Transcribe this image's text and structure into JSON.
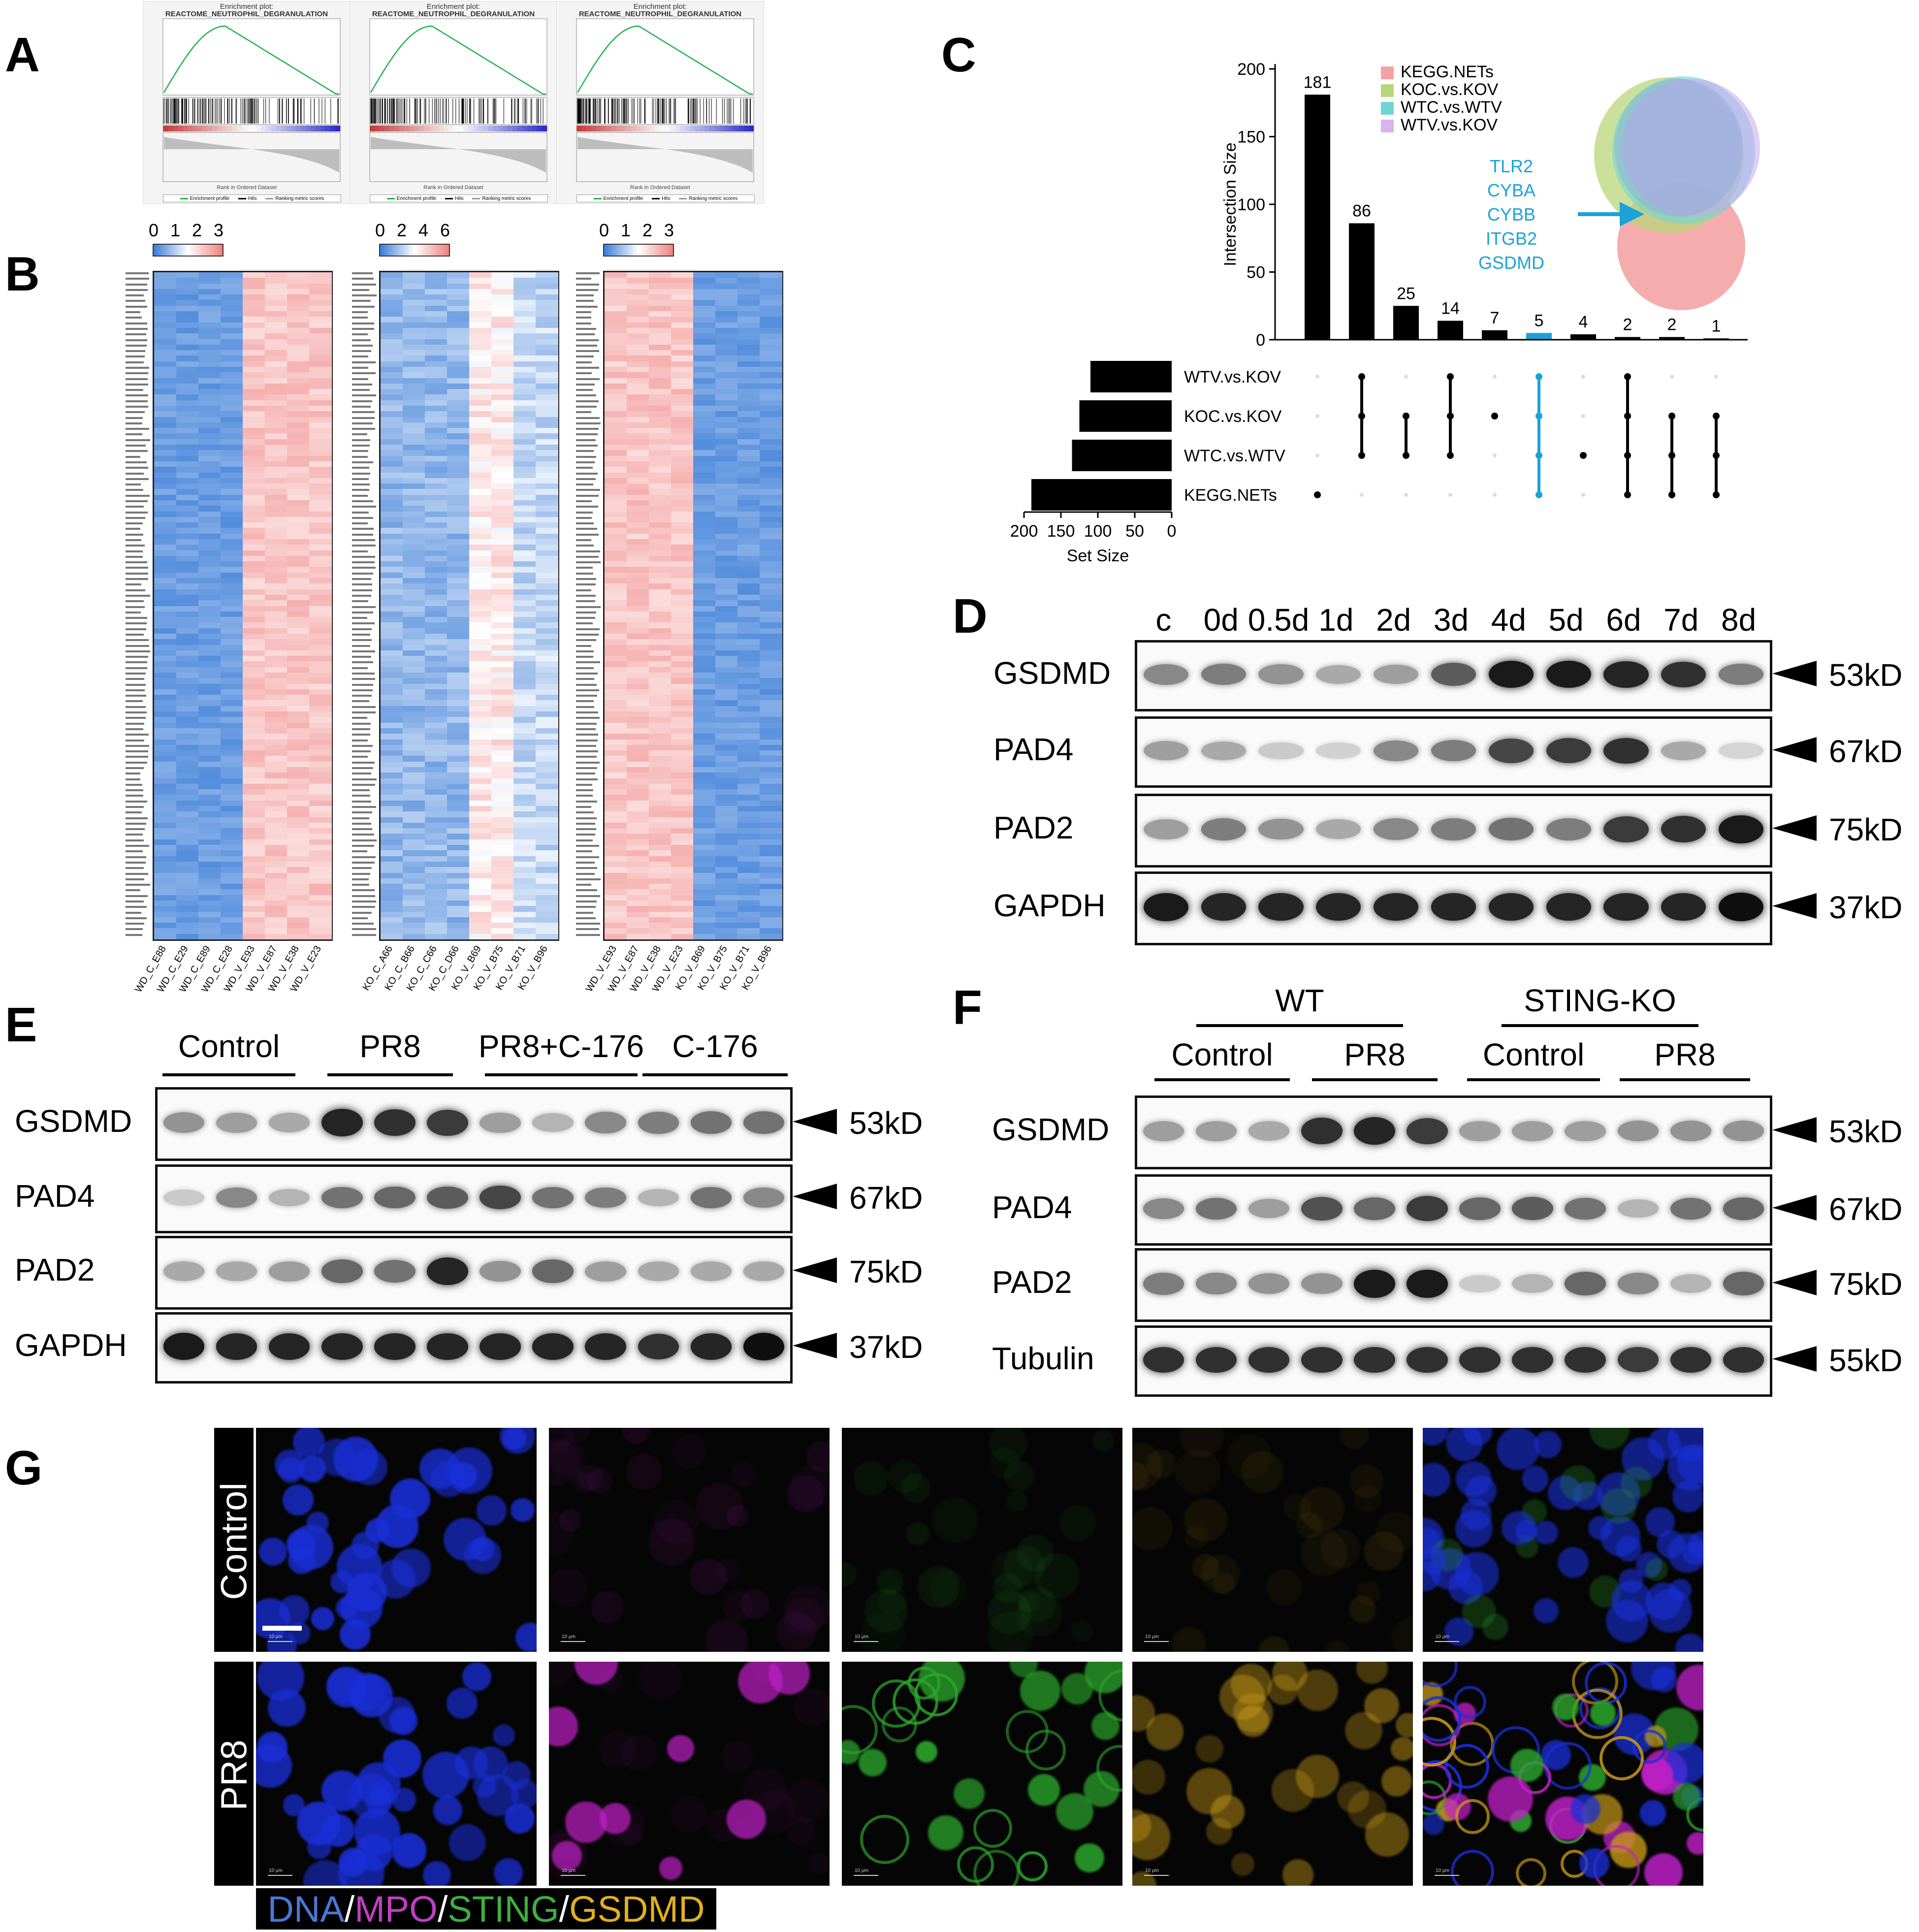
{
  "panels": {
    "A": "A",
    "B": "B",
    "C": "C",
    "D": "D",
    "E": "E",
    "F": "F",
    "G": "G"
  },
  "panel_a": {
    "plot_header": "Enrichment plot:",
    "gene_set": "REACTOME_NEUTROPHIL_DEGRANULATION",
    "x_axis_title": "Rank in Ordered Dataset",
    "legend": [
      "Enrichment profile",
      "Hits",
      "Ranking metric scores"
    ]
  },
  "panel_b": {
    "heatmaps": [
      {
        "scale_ticks": [
          "0",
          "1",
          "2",
          "3"
        ],
        "samples": [
          "WD_C_E88",
          "WD_C_E29",
          "WD_C_E89",
          "WD_C_E28",
          "WD_V_E93",
          "WD_V_E87",
          "WD_V_E38",
          "WD_V_E23"
        ]
      },
      {
        "scale_ticks": [
          "0",
          "2",
          "4",
          "6"
        ],
        "samples": [
          "KO_C_A66",
          "KO_C_B66",
          "KO_C_C66",
          "KO_C_D66",
          "KO_V_B69",
          "KO_V_B75",
          "KO_V_B71",
          "KO_V_B96"
        ]
      },
      {
        "scale_ticks": [
          "0",
          "1",
          "2",
          "3"
        ],
        "samples": [
          "WD_V_E93",
          "WD_V_E87",
          "WD_V_E38",
          "WD_V_E23",
          "KO_V_B69",
          "KO_V_B75",
          "KO_V_B71",
          "KO_V_B96"
        ]
      }
    ],
    "colors": {
      "low": "#3b7dd8",
      "mid": "#ffffff",
      "high": "#f08080"
    }
  },
  "chart_data": {
    "type": "bar",
    "subtype": "upset",
    "ylabel": "Intersection Size",
    "ylim": [
      0,
      200
    ],
    "y_ticks": [
      "0",
      "50",
      "100",
      "150",
      "200"
    ],
    "values": [
      181,
      86,
      25,
      14,
      7,
      5,
      4,
      2,
      2,
      1
    ],
    "highlight_index": 5,
    "sets": [
      "WTV.vs.KOV",
      "KOC.vs.KOV",
      "WTC.vs.WTV",
      "KEGG.NETs"
    ],
    "set_sizes_xlabel": "Set Size",
    "set_size_ticks": [
      "200",
      "150",
      "100",
      "50",
      "0"
    ],
    "set_sizes": [
      110,
      125,
      135,
      190
    ],
    "membership": [
      [
        "KEGG.NETs"
      ],
      [
        "WTV.vs.KOV",
        "KOC.vs.KOV",
        "WTC.vs.WTV"
      ],
      [
        "KOC.vs.KOV",
        "WTC.vs.WTV"
      ],
      [
        "WTV.vs.KOV",
        "KOC.vs.KOV",
        "WTC.vs.WTV"
      ],
      [
        "KOC.vs.KOV"
      ],
      [
        "WTV.vs.KOV",
        "KOC.vs.KOV",
        "WTC.vs.WTV",
        "KEGG.NETs"
      ],
      [
        "WTC.vs.WTV"
      ],
      [
        "WTV.vs.KOV",
        "KOC.vs.KOV",
        "WTC.vs.WTV",
        "KEGG.NETs"
      ],
      [
        "KOC.vs.KOV",
        "WTC.vs.WTV",
        "KEGG.NETs"
      ],
      [
        "KOC.vs.KOV",
        "WTC.vs.WTV",
        "KEGG.NETs"
      ]
    ],
    "legend": [
      {
        "name": "KEGG.NETs",
        "color": "#f4a3a3"
      },
      {
        "name": "KOC.vs.KOV",
        "color": "#b9d77a"
      },
      {
        "name": "WTC.vs.WTV",
        "color": "#6fd6d6"
      },
      {
        "name": "WTV.vs.KOV",
        "color": "#d9b3f0"
      }
    ],
    "venn_genes": [
      "TLR2",
      "CYBA",
      "CYBB",
      "ITGB2",
      "GSDMD"
    ],
    "accent_color": "#1aa3d8"
  },
  "panel_d": {
    "lanes": [
      "c",
      "0d",
      "0.5d",
      "1d",
      "2d",
      "3d",
      "4d",
      "5d",
      "6d",
      "7d",
      "8d"
    ],
    "rows": [
      {
        "label": "GSDMD",
        "kd": "53kD",
        "intensity": [
          0.45,
          0.5,
          0.4,
          0.3,
          0.35,
          0.65,
          0.95,
          0.95,
          0.9,
          0.85,
          0.5
        ]
      },
      {
        "label": "PAD4",
        "kd": "67kD",
        "intensity": [
          0.35,
          0.3,
          0.15,
          0.12,
          0.45,
          0.5,
          0.75,
          0.8,
          0.85,
          0.3,
          0.1
        ]
      },
      {
        "label": "PAD2",
        "kd": "75kD",
        "intensity": [
          0.35,
          0.5,
          0.4,
          0.3,
          0.45,
          0.5,
          0.55,
          0.5,
          0.8,
          0.85,
          0.95
        ]
      },
      {
        "label": "GAPDH",
        "kd": "37kD",
        "intensity": [
          0.95,
          0.9,
          0.9,
          0.9,
          0.9,
          0.9,
          0.9,
          0.9,
          0.9,
          0.9,
          1.0
        ]
      }
    ]
  },
  "panel_e": {
    "groups": [
      "Control",
      "PR8",
      "PR8+C-176",
      "C-176"
    ],
    "rows": [
      {
        "label": "GSDMD",
        "kd": "53kD",
        "intensity": [
          0.4,
          0.35,
          0.3,
          0.9,
          0.85,
          0.8,
          0.35,
          0.25,
          0.45,
          0.5,
          0.55,
          0.55
        ]
      },
      {
        "label": "PAD4",
        "kd": "67kD",
        "intensity": [
          0.15,
          0.45,
          0.25,
          0.55,
          0.6,
          0.65,
          0.75,
          0.55,
          0.5,
          0.25,
          0.55,
          0.45
        ]
      },
      {
        "label": "PAD2",
        "kd": "75kD",
        "intensity": [
          0.3,
          0.3,
          0.35,
          0.6,
          0.55,
          0.9,
          0.4,
          0.6,
          0.35,
          0.3,
          0.3,
          0.3
        ]
      },
      {
        "label": "GAPDH",
        "kd": "37kD",
        "intensity": [
          0.95,
          0.9,
          0.9,
          0.9,
          0.9,
          0.9,
          0.9,
          0.9,
          0.9,
          0.85,
          0.9,
          1.0
        ]
      }
    ]
  },
  "panel_f": {
    "top_groups": [
      "WT",
      "STING-KO"
    ],
    "sub_groups": [
      "Control",
      "PR8",
      "Control",
      "PR8"
    ],
    "rows": [
      {
        "label": "GSDMD",
        "kd": "53kD",
        "intensity": [
          0.35,
          0.35,
          0.3,
          0.85,
          0.9,
          0.8,
          0.35,
          0.35,
          0.35,
          0.4,
          0.4,
          0.4
        ]
      },
      {
        "label": "PAD4",
        "kd": "67kD",
        "intensity": [
          0.45,
          0.55,
          0.35,
          0.7,
          0.6,
          0.8,
          0.6,
          0.65,
          0.55,
          0.25,
          0.55,
          0.6
        ]
      },
      {
        "label": "PAD2",
        "kd": "75kD",
        "intensity": [
          0.5,
          0.45,
          0.4,
          0.4,
          0.95,
          0.95,
          0.15,
          0.25,
          0.6,
          0.45,
          0.25,
          0.6
        ]
      },
      {
        "label": "Tubulin",
        "kd": "55kD",
        "intensity": [
          0.85,
          0.85,
          0.85,
          0.85,
          0.85,
          0.85,
          0.85,
          0.85,
          0.85,
          0.8,
          0.85,
          0.85
        ]
      }
    ]
  },
  "panel_g": {
    "rows": [
      "Control",
      "PR8"
    ],
    "scalebar": "10 μm",
    "channels": [
      {
        "name": "DNA",
        "color": "#4a78d8"
      },
      {
        "name": "MPO",
        "color": "#c040c0"
      },
      {
        "name": "STING",
        "color": "#3fae3f"
      },
      {
        "name": "GSDMD",
        "color": "#e0b020"
      }
    ],
    "separator": "/"
  }
}
